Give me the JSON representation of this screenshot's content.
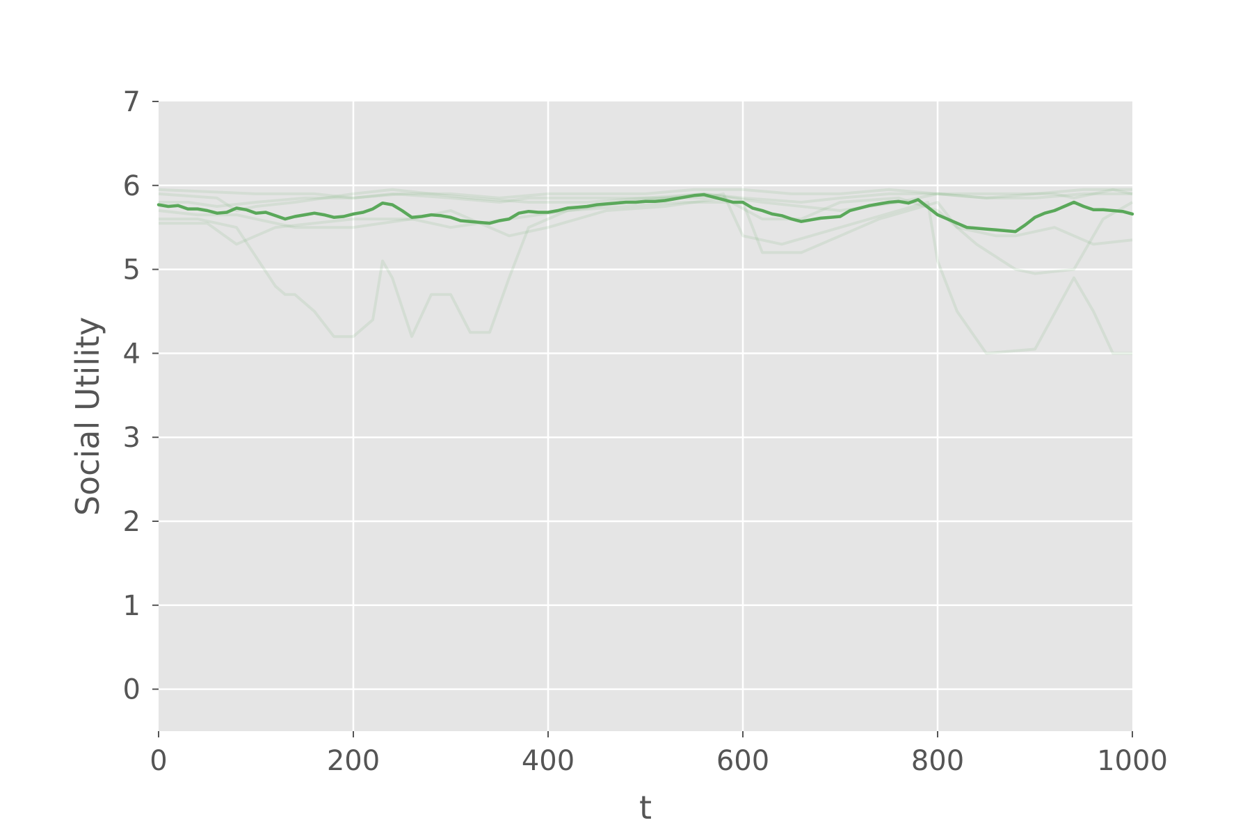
{
  "chart_data": {
    "type": "line",
    "title": "",
    "xlabel": "t",
    "ylabel": "Social Utility",
    "xlim": [
      0,
      1000
    ],
    "ylim": [
      -0.5,
      7
    ],
    "xticks": [
      "0",
      "200",
      "400",
      "600",
      "800",
      "1000"
    ],
    "yticks": [
      "0",
      "1",
      "2",
      "3",
      "4",
      "5",
      "6",
      "7"
    ],
    "grid": true,
    "legend": "none",
    "colors": {
      "plot_background": "#e5e5e5",
      "grid": "#ffffff",
      "mean_line": "#5aa85a",
      "trial_lines": "#5aa85a",
      "text": "#555555"
    },
    "mean_series": {
      "x": [
        0,
        10,
        20,
        30,
        40,
        50,
        60,
        70,
        80,
        90,
        100,
        110,
        120,
        130,
        140,
        150,
        160,
        170,
        180,
        190,
        200,
        210,
        220,
        230,
        240,
        250,
        260,
        270,
        280,
        290,
        300,
        310,
        320,
        330,
        340,
        350,
        360,
        370,
        380,
        390,
        400,
        410,
        420,
        430,
        440,
        450,
        460,
        470,
        480,
        490,
        500,
        510,
        520,
        530,
        540,
        550,
        560,
        570,
        580,
        590,
        600,
        610,
        620,
        630,
        640,
        650,
        660,
        670,
        680,
        690,
        700,
        710,
        720,
        730,
        740,
        750,
        760,
        770,
        780,
        790,
        800,
        810,
        820,
        830,
        840,
        850,
        860,
        870,
        880,
        890,
        900,
        910,
        920,
        930,
        940,
        950,
        960,
        970,
        980,
        990,
        1000
      ],
      "y": [
        5.77,
        5.75,
        5.76,
        5.72,
        5.72,
        5.7,
        5.67,
        5.68,
        5.73,
        5.71,
        5.67,
        5.68,
        5.64,
        5.6,
        5.63,
        5.65,
        5.67,
        5.65,
        5.62,
        5.63,
        5.66,
        5.68,
        5.72,
        5.79,
        5.77,
        5.7,
        5.62,
        5.63,
        5.65,
        5.64,
        5.62,
        5.58,
        5.57,
        5.56,
        5.55,
        5.58,
        5.6,
        5.67,
        5.69,
        5.68,
        5.68,
        5.7,
        5.73,
        5.74,
        5.75,
        5.77,
        5.78,
        5.79,
        5.8,
        5.8,
        5.81,
        5.81,
        5.82,
        5.84,
        5.86,
        5.88,
        5.89,
        5.86,
        5.83,
        5.8,
        5.8,
        5.73,
        5.7,
        5.66,
        5.64,
        5.6,
        5.57,
        5.59,
        5.61,
        5.62,
        5.63,
        5.7,
        5.73,
        5.76,
        5.78,
        5.8,
        5.81,
        5.79,
        5.83,
        5.74,
        5.65,
        5.6,
        5.55,
        5.5,
        5.49,
        5.48,
        5.47,
        5.46,
        5.45,
        5.53,
        5.62,
        5.67,
        5.7,
        5.75,
        5.8,
        5.75,
        5.71,
        5.71,
        5.7,
        5.69,
        5.66
      ]
    },
    "trial_series": [
      {
        "x": [
          0,
          40,
          80,
          120,
          130,
          140,
          160,
          180,
          200,
          220,
          230,
          240,
          260,
          280,
          300,
          320,
          340,
          360,
          380,
          420,
          480,
          560,
          620,
          700,
          760,
          800,
          840,
          880,
          920,
          940,
          960,
          980,
          1000
        ],
        "y": [
          5.6,
          5.6,
          5.5,
          4.8,
          4.7,
          4.7,
          4.5,
          4.2,
          4.2,
          4.4,
          5.1,
          4.9,
          4.2,
          4.7,
          4.7,
          4.25,
          4.25,
          4.9,
          5.5,
          5.7,
          5.8,
          5.9,
          5.8,
          5.7,
          5.8,
          5.9,
          5.9,
          5.9,
          5.9,
          5.85,
          5.9,
          5.95,
          5.9
        ]
      },
      {
        "x": [
          0,
          100,
          160,
          200,
          240,
          300,
          350,
          380,
          420,
          500,
          560,
          580,
          600,
          640,
          700,
          760,
          790,
          800,
          820,
          850,
          900,
          940,
          960,
          980,
          1000
        ],
        "y": [
          5.95,
          5.9,
          5.9,
          5.85,
          5.9,
          5.85,
          5.8,
          5.85,
          5.85,
          5.85,
          5.85,
          5.9,
          5.4,
          5.3,
          5.5,
          5.7,
          5.8,
          5.1,
          4.5,
          4.0,
          4.05,
          4.9,
          4.5,
          4.0,
          4.0
        ]
      },
      {
        "x": [
          0,
          50,
          80,
          120,
          200,
          260,
          300,
          360,
          400,
          460,
          520,
          580,
          620,
          660,
          700,
          760,
          800,
          840,
          880,
          900,
          940,
          970,
          1000
        ],
        "y": [
          5.55,
          5.55,
          5.3,
          5.5,
          5.6,
          5.6,
          5.7,
          5.4,
          5.5,
          5.7,
          5.75,
          5.85,
          5.6,
          5.6,
          5.8,
          5.85,
          5.7,
          5.3,
          5.0,
          4.95,
          5.0,
          5.6,
          5.8
        ]
      },
      {
        "x": [
          0,
          60,
          80,
          100,
          140,
          200,
          240,
          280,
          320,
          380,
          440,
          500,
          560,
          600,
          660,
          700,
          750,
          800,
          850,
          900,
          950,
          1000
        ],
        "y": [
          5.9,
          5.85,
          5.7,
          5.75,
          5.8,
          5.9,
          5.95,
          5.9,
          5.85,
          5.8,
          5.8,
          5.85,
          5.9,
          5.85,
          5.8,
          5.85,
          5.9,
          5.9,
          5.85,
          5.9,
          5.95,
          5.95
        ]
      },
      {
        "x": [
          0,
          40,
          80,
          140,
          200,
          260,
          300,
          360,
          420,
          480,
          540,
          600,
          620,
          660,
          700,
          740,
          800,
          820,
          860,
          880,
          920,
          960,
          1000
        ],
        "y": [
          5.7,
          5.65,
          5.65,
          5.5,
          5.5,
          5.6,
          5.5,
          5.6,
          5.7,
          5.75,
          5.8,
          5.8,
          5.2,
          5.2,
          5.4,
          5.6,
          5.8,
          5.5,
          5.4,
          5.4,
          5.5,
          5.3,
          5.35
        ]
      },
      {
        "x": [
          0,
          30,
          60,
          100,
          150,
          200,
          250,
          300,
          350,
          400,
          450,
          500,
          550,
          600,
          650,
          700,
          750,
          800,
          850,
          900,
          950,
          1000
        ],
        "y": [
          5.8,
          5.8,
          5.75,
          5.8,
          5.85,
          5.85,
          5.9,
          5.9,
          5.85,
          5.9,
          5.9,
          5.9,
          5.95,
          5.95,
          5.9,
          5.9,
          5.95,
          5.9,
          5.85,
          5.85,
          5.9,
          5.9
        ]
      }
    ]
  }
}
